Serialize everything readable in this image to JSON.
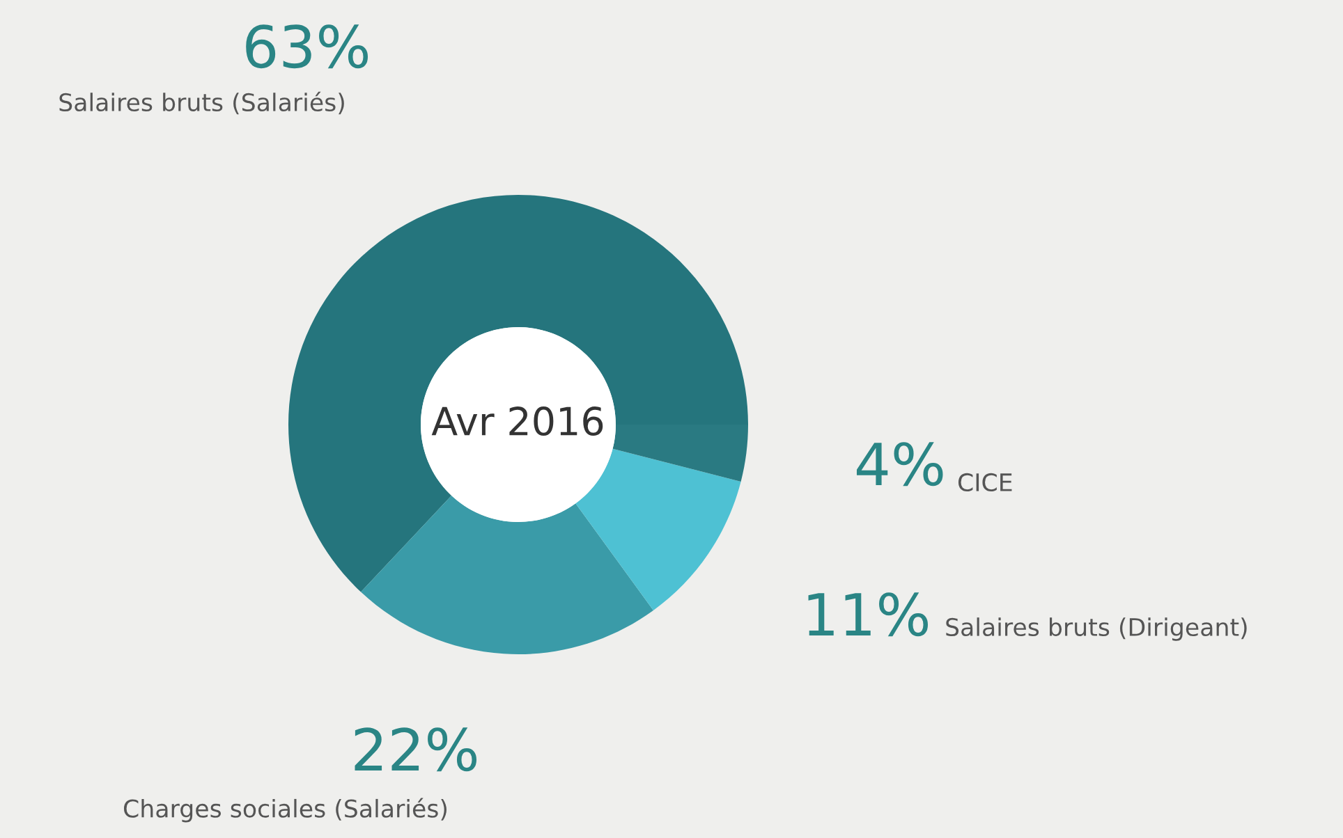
{
  "chart_data": {
    "type": "donut",
    "title": "Avr 2016",
    "categories": [
      "Salaires bruts (Salariés)",
      "Charges sociales (Salariés)",
      "Salaires bruts (Dirigeant)",
      "CICE"
    ],
    "values": [
      63,
      22,
      11,
      4
    ],
    "colors": [
      "#25757d",
      "#3a9ba8",
      "#4ec1d3",
      "#2a7a82"
    ],
    "value_labels": [
      "63%",
      "22%",
      "11%",
      "4%"
    ],
    "legend": false
  }
}
